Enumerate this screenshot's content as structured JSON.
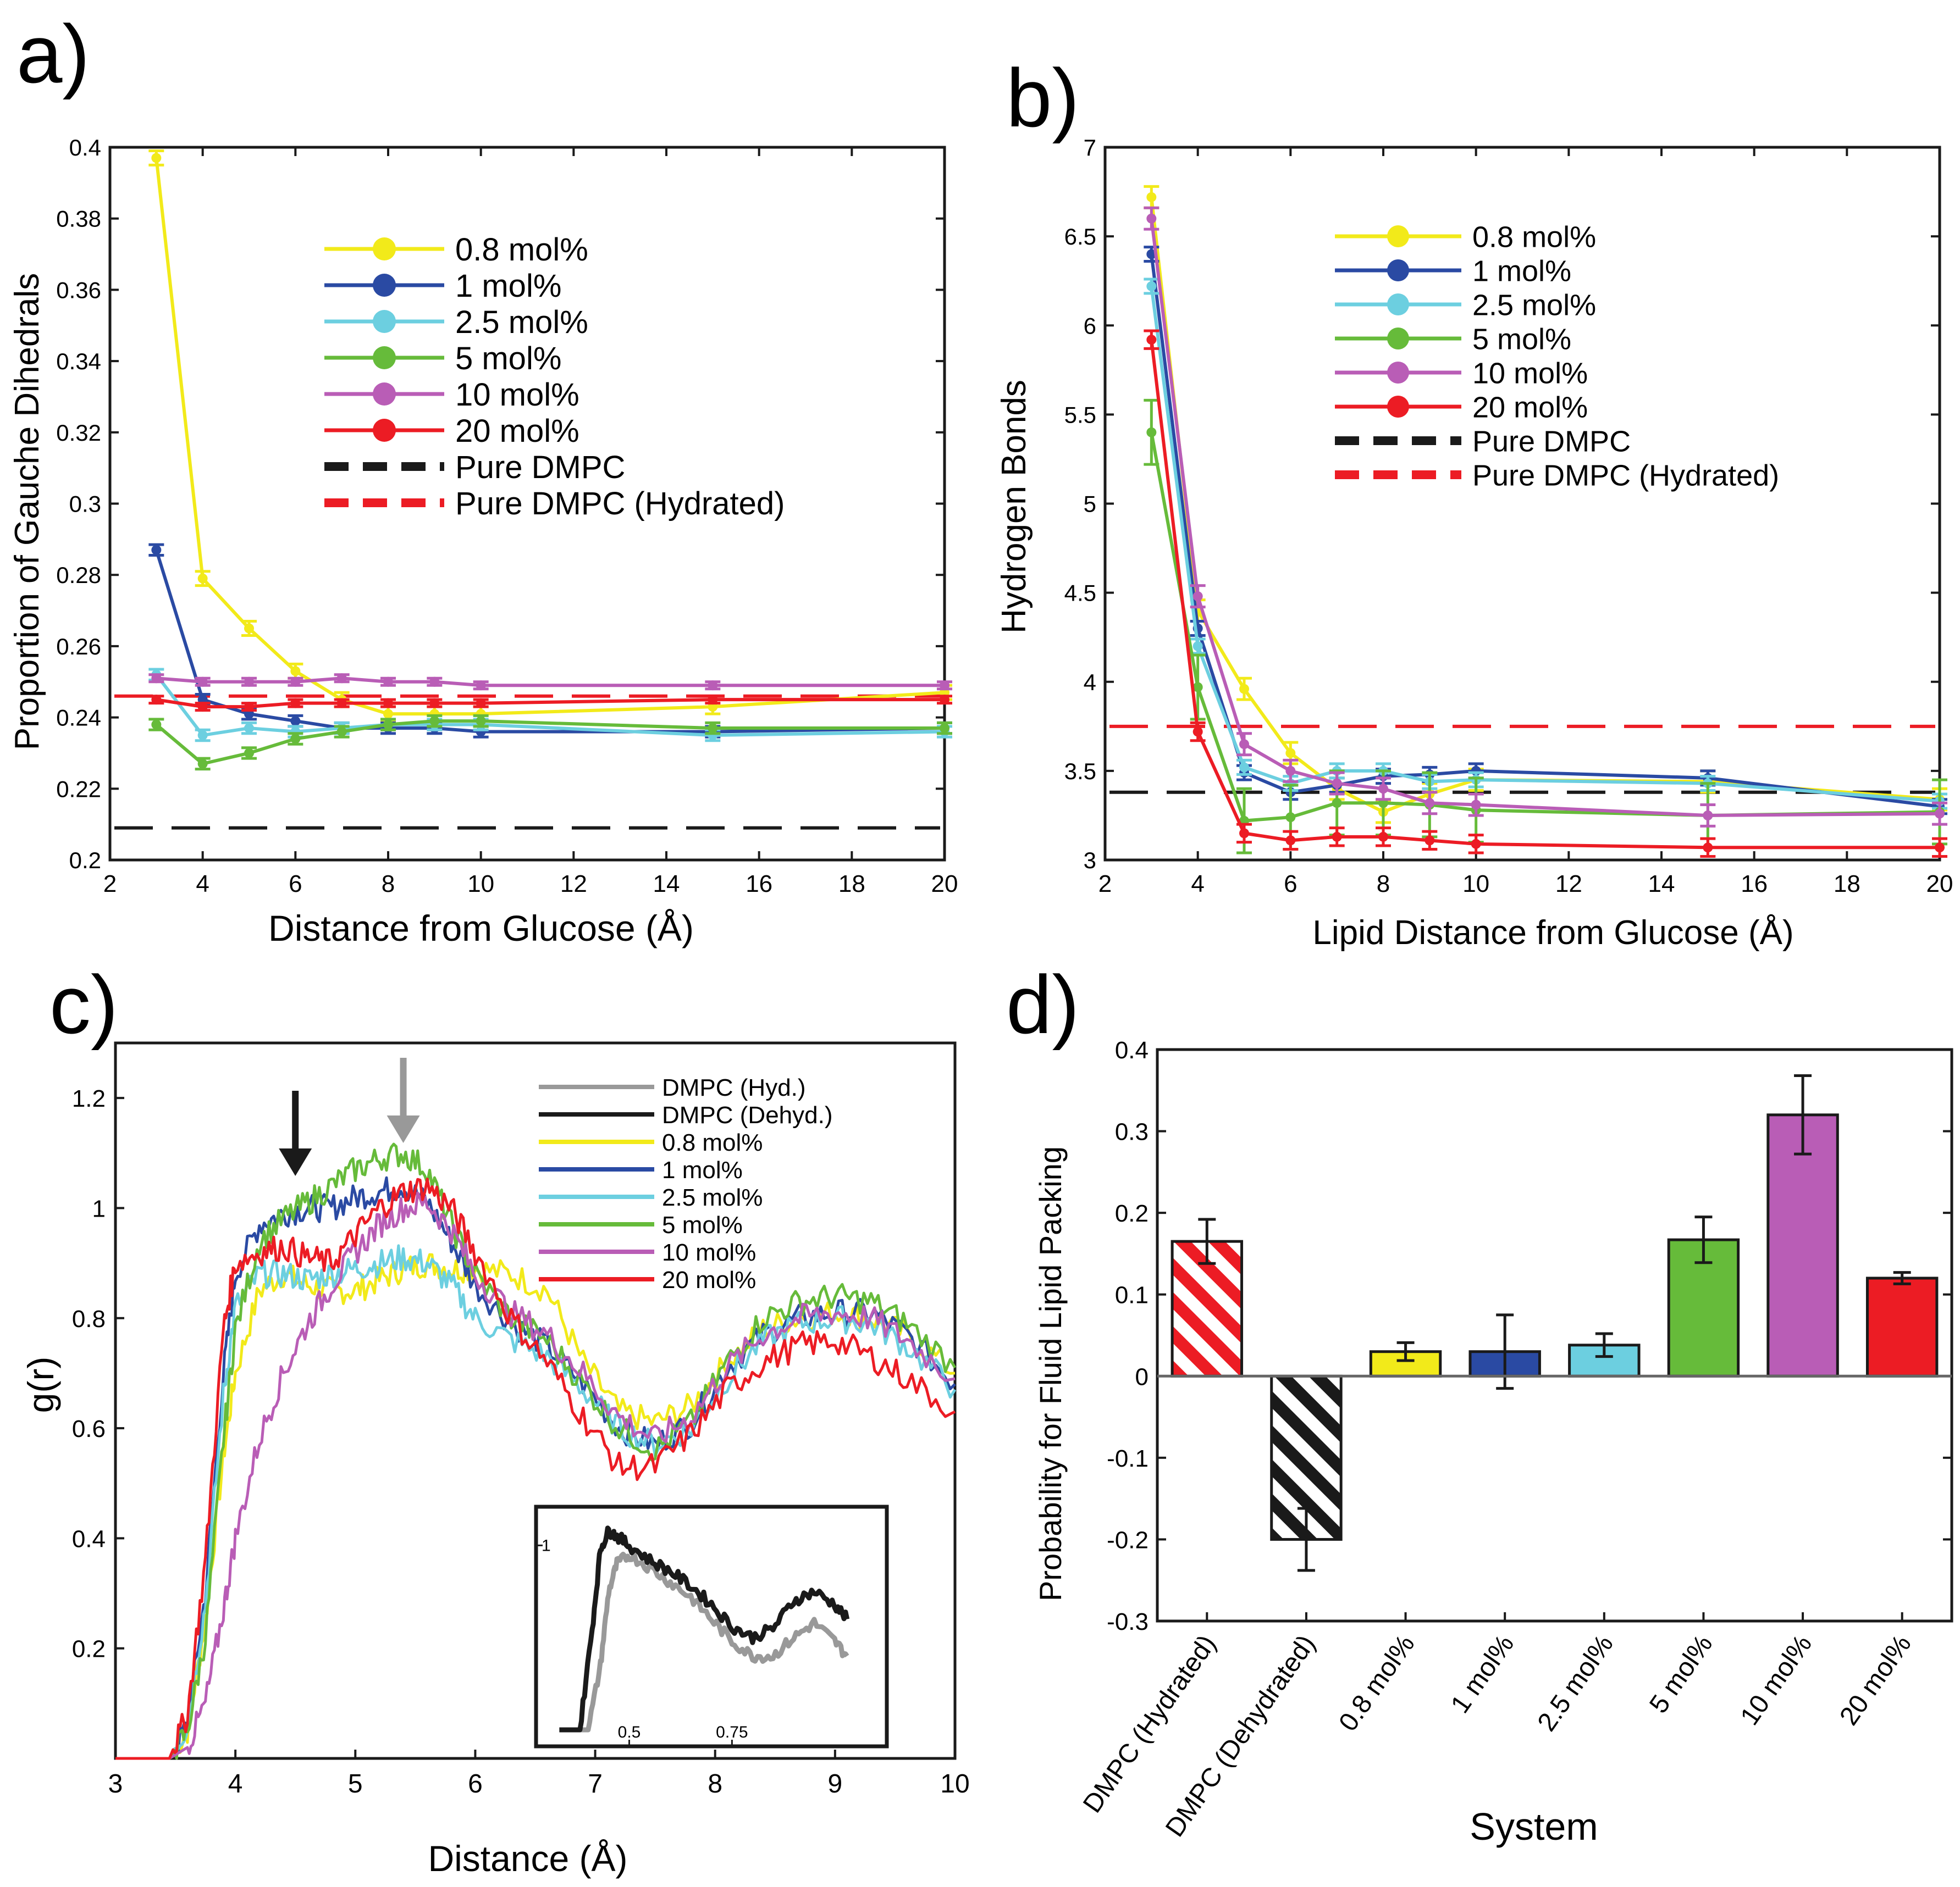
{
  "colors": {
    "yellow": "#f2ea1a",
    "blue": "#2a4aa3",
    "cyan": "#6ccfe0",
    "green": "#66bb3a",
    "magenta": "#b95db6",
    "red": "#ec1c24",
    "black": "#1a1a1a",
    "gray": "#999999"
  },
  "chart_data": [
    {
      "panel_label": "a)",
      "type": "line",
      "xlabel": "Distance from Glucose (Å)",
      "ylabel": "Proportion of Gauche Dihedrals",
      "xlim": [
        2,
        20
      ],
      "ylim": [
        0.2,
        0.4
      ],
      "xticks": [
        2,
        4,
        6,
        8,
        10,
        12,
        14,
        16,
        18,
        20
      ],
      "yticks": [
        0.2,
        0.22,
        0.24,
        0.26,
        0.28,
        0.3,
        0.32,
        0.34,
        0.36,
        0.38,
        0.4
      ],
      "ytick_labels": [
        "0.2",
        "0.22",
        "0.24",
        "0.26",
        "0.28",
        "0.3",
        "0.32",
        "0.34",
        "0.36",
        "0.38",
        "0.4"
      ],
      "x": [
        3,
        4,
        5,
        6,
        7,
        8,
        9,
        10,
        15,
        20
      ],
      "series": [
        {
          "name": "0.8 mol%",
          "color": "yellow",
          "values": [
            0.397,
            0.279,
            0.265,
            0.253,
            0.245,
            0.241,
            0.241,
            0.241,
            0.243,
            0.247
          ],
          "err": 0.002
        },
        {
          "name": "1 mol%",
          "color": "blue",
          "values": [
            0.287,
            0.245,
            0.241,
            0.239,
            0.237,
            0.237,
            0.237,
            0.236,
            0.236,
            0.237
          ],
          "err": 0.0015
        },
        {
          "name": "2.5 mol%",
          "color": "cyan",
          "values": [
            0.252,
            0.235,
            0.237,
            0.236,
            0.237,
            0.238,
            0.238,
            0.238,
            0.235,
            0.236
          ],
          "err": 0.0015
        },
        {
          "name": "5 mol%",
          "color": "green",
          "values": [
            0.238,
            0.227,
            0.23,
            0.234,
            0.236,
            0.238,
            0.239,
            0.239,
            0.237,
            0.237
          ],
          "err": 0.0015
        },
        {
          "name": "10 mol%",
          "color": "magenta",
          "values": [
            0.251,
            0.25,
            0.25,
            0.25,
            0.251,
            0.25,
            0.25,
            0.249,
            0.249,
            0.249
          ],
          "err": 0.001
        },
        {
          "name": "20 mol%",
          "color": "red",
          "values": [
            0.245,
            0.243,
            0.243,
            0.244,
            0.244,
            0.244,
            0.244,
            0.244,
            0.245,
            0.245
          ],
          "err": 0.001
        }
      ],
      "reference_lines": [
        {
          "name": "Pure DMPC",
          "color": "black",
          "value": 0.209
        },
        {
          "name": "Pure DMPC (Hydrated)",
          "color": "red",
          "value": 0.246
        }
      ],
      "legend_position": "top-right"
    },
    {
      "panel_label": "b)",
      "type": "line",
      "xlabel": "Lipid Distance from Glucose (Å)",
      "ylabel": "Hydrogen Bonds",
      "xlim": [
        2,
        20
      ],
      "ylim": [
        3,
        7
      ],
      "xticks": [
        2,
        4,
        6,
        8,
        10,
        12,
        14,
        16,
        18,
        20
      ],
      "yticks": [
        3,
        3.5,
        4,
        4.5,
        5,
        5.5,
        6,
        6.5,
        7
      ],
      "ytick_labels": [
        "3",
        "3.5",
        "4",
        "4.5",
        "5",
        "5.5",
        "6",
        "6.5",
        "7"
      ],
      "x": [
        3,
        4,
        5,
        6,
        7,
        8,
        9,
        10,
        15,
        20
      ],
      "series": [
        {
          "name": "0.8 mol%",
          "color": "yellow",
          "values": [
            6.72,
            4.4,
            3.96,
            3.6,
            3.4,
            3.27,
            3.37,
            3.45,
            3.44,
            3.34
          ],
          "err": 0.06
        },
        {
          "name": "1 mol%",
          "color": "blue",
          "values": [
            6.4,
            4.3,
            3.49,
            3.38,
            3.42,
            3.47,
            3.48,
            3.5,
            3.46,
            3.3
          ],
          "err": 0.04
        },
        {
          "name": "2.5 mol%",
          "color": "cyan",
          "values": [
            6.22,
            4.2,
            3.52,
            3.43,
            3.5,
            3.5,
            3.44,
            3.45,
            3.43,
            3.33
          ],
          "err": 0.04
        },
        {
          "name": "5 mol%",
          "color": "green",
          "values": [
            5.4,
            3.97,
            3.22,
            3.24,
            3.32,
            3.32,
            3.31,
            3.28,
            3.25,
            3.27
          ],
          "err": 0.18
        },
        {
          "name": "10 mol%",
          "color": "magenta",
          "values": [
            6.6,
            4.48,
            3.65,
            3.5,
            3.43,
            3.4,
            3.32,
            3.31,
            3.25,
            3.26
          ],
          "err": 0.06
        },
        {
          "name": "20 mol%",
          "color": "red",
          "values": [
            5.92,
            3.72,
            3.15,
            3.11,
            3.13,
            3.13,
            3.11,
            3.09,
            3.07,
            3.07
          ],
          "err": 0.05
        }
      ],
      "reference_lines": [
        {
          "name": "Pure DMPC",
          "color": "black",
          "value": 3.38
        },
        {
          "name": "Pure DMPC (Hydrated)",
          "color": "red",
          "value": 3.75
        }
      ],
      "legend_position": "top-right"
    },
    {
      "panel_label": "c)",
      "type": "line",
      "xlabel": "Distance (Å)",
      "ylabel": "g(r)",
      "xlim": [
        3,
        10
      ],
      "ylim": [
        0,
        1.3
      ],
      "xticks": [
        3,
        4,
        5,
        6,
        7,
        8,
        9,
        10
      ],
      "yticks": [
        0.2,
        0.4,
        0.6,
        0.8,
        1,
        1.2
      ],
      "ytick_labels": [
        "0.2",
        "0.4",
        "0.6",
        "0.8",
        "1",
        "1.2"
      ],
      "series": [
        {
          "name": "DMPC (Hyd.)",
          "color": "gray",
          "legend_only": true
        },
        {
          "name": "DMPC (Dehyd.)",
          "color": "black",
          "legend_only": true
        },
        {
          "name": "0.8 mol%",
          "color": "yellow",
          "x": [
            3,
            3.45,
            3.6,
            3.75,
            3.9,
            4.0,
            4.2,
            4.4,
            4.6,
            4.8,
            5.0,
            5.2,
            5.4,
            5.6,
            5.8,
            6.0,
            6.3,
            6.6,
            6.9,
            7.2,
            7.5,
            7.8,
            8.1,
            8.4,
            8.7,
            9.0,
            9.3,
            9.6,
            10
          ],
          "values": [
            0,
            0,
            0.05,
            0.25,
            0.55,
            0.7,
            0.85,
            0.88,
            0.86,
            0.85,
            0.85,
            0.87,
            0.89,
            0.9,
            0.89,
            0.89,
            0.88,
            0.85,
            0.72,
            0.63,
            0.61,
            0.64,
            0.72,
            0.78,
            0.8,
            0.81,
            0.8,
            0.77,
            0.7
          ]
        },
        {
          "name": "1 mol%",
          "color": "blue",
          "x": [
            3,
            3.45,
            3.6,
            3.75,
            3.9,
            4.0,
            4.2,
            4.4,
            4.6,
            4.8,
            5.0,
            5.2,
            5.4,
            5.6,
            5.8,
            6.0,
            6.3,
            6.6,
            6.9,
            7.2,
            7.5,
            7.8,
            8.1,
            8.4,
            8.7,
            9.0,
            9.3,
            9.6,
            10
          ],
          "values": [
            0,
            0,
            0.06,
            0.3,
            0.7,
            0.88,
            0.97,
            0.99,
            1.0,
            1.0,
            1.02,
            1.03,
            1.04,
            1.01,
            0.94,
            0.86,
            0.79,
            0.75,
            0.68,
            0.6,
            0.57,
            0.61,
            0.71,
            0.77,
            0.8,
            0.81,
            0.81,
            0.77,
            0.68
          ]
        },
        {
          "name": "2.5 mol%",
          "color": "cyan",
          "x": [
            3,
            3.45,
            3.6,
            3.75,
            3.9,
            4.0,
            4.2,
            4.4,
            4.6,
            4.8,
            5.0,
            5.2,
            5.4,
            5.6,
            5.8,
            6.0,
            6.3,
            6.6,
            6.9,
            7.2,
            7.5,
            7.8,
            8.1,
            8.4,
            8.7,
            9.0,
            9.3,
            9.6,
            10
          ],
          "values": [
            0,
            0,
            0.06,
            0.28,
            0.66,
            0.82,
            0.88,
            0.88,
            0.87,
            0.88,
            0.89,
            0.9,
            0.91,
            0.9,
            0.86,
            0.8,
            0.76,
            0.73,
            0.67,
            0.6,
            0.57,
            0.6,
            0.69,
            0.76,
            0.79,
            0.8,
            0.79,
            0.75,
            0.67
          ]
        },
        {
          "name": "5 mol%",
          "color": "green",
          "x": [
            3,
            3.45,
            3.6,
            3.75,
            3.9,
            4.0,
            4.2,
            4.4,
            4.6,
            4.8,
            5.0,
            5.2,
            5.4,
            5.6,
            5.8,
            6.0,
            6.3,
            6.6,
            6.9,
            7.2,
            7.5,
            7.8,
            8.1,
            8.4,
            8.7,
            9.0,
            9.3,
            9.6,
            10
          ],
          "values": [
            0,
            0,
            0.05,
            0.22,
            0.58,
            0.78,
            0.94,
            0.98,
            1.01,
            1.04,
            1.07,
            1.09,
            1.1,
            1.07,
            0.97,
            0.88,
            0.8,
            0.76,
            0.68,
            0.6,
            0.56,
            0.61,
            0.72,
            0.8,
            0.83,
            0.84,
            0.83,
            0.79,
            0.71
          ]
        },
        {
          "name": "10 mol%",
          "color": "magenta",
          "x": [
            3,
            3.45,
            3.6,
            3.75,
            3.9,
            4.0,
            4.2,
            4.4,
            4.6,
            4.8,
            5.0,
            5.2,
            5.4,
            5.6,
            5.8,
            6.0,
            6.3,
            6.6,
            6.9,
            7.2,
            7.5,
            7.8,
            8.1,
            8.4,
            8.7,
            9.0,
            9.3,
            9.6,
            10
          ],
          "values": [
            0,
            0,
            0.02,
            0.1,
            0.27,
            0.4,
            0.58,
            0.7,
            0.79,
            0.86,
            0.92,
            0.97,
            1.0,
            1.01,
            0.96,
            0.88,
            0.81,
            0.77,
            0.7,
            0.62,
            0.58,
            0.62,
            0.71,
            0.77,
            0.8,
            0.81,
            0.8,
            0.76,
            0.69
          ]
        },
        {
          "name": "20 mol%",
          "color": "red",
          "x": [
            3,
            3.45,
            3.6,
            3.75,
            3.9,
            4.0,
            4.2,
            4.4,
            4.6,
            4.8,
            5.0,
            5.2,
            5.4,
            5.6,
            5.8,
            6.0,
            6.3,
            6.6,
            6.9,
            7.2,
            7.5,
            7.8,
            8.1,
            8.4,
            8.7,
            9.0,
            9.3,
            9.6,
            10
          ],
          "values": [
            0,
            0,
            0.08,
            0.36,
            0.78,
            0.9,
            0.92,
            0.93,
            0.91,
            0.9,
            0.95,
            1.0,
            1.03,
            1.04,
            1.0,
            0.92,
            0.8,
            0.72,
            0.62,
            0.53,
            0.53,
            0.59,
            0.67,
            0.72,
            0.75,
            0.76,
            0.73,
            0.69,
            0.63
          ]
        }
      ],
      "arrows": [
        {
          "name": "black-arrow",
          "x": 4.5,
          "color": "black"
        },
        {
          "name": "gray-arrow",
          "x": 5.4,
          "color": "gray"
        }
      ],
      "inset": {
        "xticks": [
          0.5,
          0.75
        ],
        "xtick_labels": [
          "0.5",
          "0.75"
        ],
        "yticks": [
          1
        ],
        "ytick_labels": [
          "1"
        ],
        "xlim": [
          0.3,
          1.1
        ],
        "ylim": [
          0,
          1.15
        ],
        "series": [
          {
            "name": "DMPC (Hyd.)",
            "color": "gray",
            "x": [
              0.33,
              0.4,
              0.43,
              0.45,
              0.47,
              0.5,
              0.55,
              0.6,
              0.65,
              0.7,
              0.75,
              0.8,
              0.85,
              0.9,
              0.95,
              1.0,
              1.03
            ],
            "values": [
              0,
              0,
              0.35,
              0.75,
              0.9,
              0.95,
              0.88,
              0.8,
              0.72,
              0.6,
              0.48,
              0.4,
              0.4,
              0.5,
              0.58,
              0.48,
              0.4
            ]
          },
          {
            "name": "DMPC (Dehyd.)",
            "color": "black",
            "x": [
              0.33,
              0.38,
              0.41,
              0.43,
              0.45,
              0.47,
              0.5,
              0.55,
              0.6,
              0.65,
              0.7,
              0.75,
              0.8,
              0.85,
              0.9,
              0.95,
              1.0,
              1.03
            ],
            "values": [
              0,
              0,
              0.55,
              0.98,
              1.08,
              1.05,
              1.0,
              0.92,
              0.86,
              0.78,
              0.68,
              0.56,
              0.5,
              0.55,
              0.7,
              0.75,
              0.68,
              0.6
            ]
          }
        ]
      },
      "legend_position": "top-right"
    },
    {
      "panel_label": "d)",
      "type": "bar",
      "xlabel": "System",
      "ylabel": "Probability for Fluid Lipid Packing",
      "ylim": [
        -0.3,
        0.4
      ],
      "yticks": [
        -0.3,
        -0.2,
        -0.1,
        0,
        0.1,
        0.2,
        0.3,
        0.4
      ],
      "ytick_labels": [
        "-0.3",
        "-0.2",
        "-0.1",
        "0",
        "0.1",
        "0.2",
        "0.3",
        "0.4"
      ],
      "categories": [
        "DMPC (Hydrated)",
        "DMPC (Dehydrated)",
        "0.8 mol%",
        "1 mol%",
        "2.5 mol%",
        "5 mol%",
        "10 mol%",
        "20 mol%"
      ],
      "values": [
        0.165,
        -0.2,
        0.03,
        0.03,
        0.038,
        0.167,
        0.32,
        0.12
      ],
      "errors": [
        0.027,
        0.038,
        0.011,
        0.045,
        0.014,
        0.028,
        0.048,
        0.007
      ],
      "bar_colors": [
        "red",
        "black",
        "yellow",
        "blue",
        "cyan",
        "green",
        "magenta",
        "red"
      ],
      "hatched": [
        true,
        true,
        false,
        false,
        false,
        false,
        false,
        false
      ]
    }
  ]
}
